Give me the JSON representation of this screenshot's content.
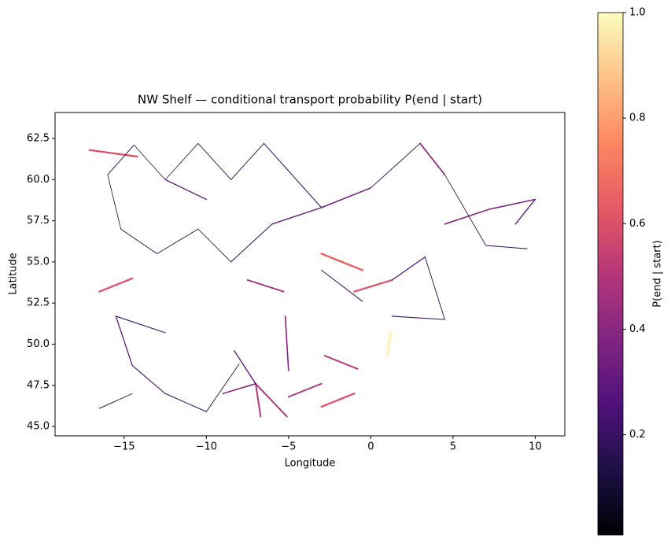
{
  "chart_data": {
    "type": "network",
    "title": "NW Shelf — conditional transport probability P(end | start)",
    "xlabel": "Longitude",
    "ylabel": "Latitude",
    "xlim": [
      -19.2,
      11.8
    ],
    "ylim": [
      44.43,
      64.08
    ],
    "xticks": [
      {
        "value": -15,
        "label": "−15"
      },
      {
        "value": -10,
        "label": "−10"
      },
      {
        "value": -5,
        "label": "−5"
      },
      0,
      5,
      10
    ],
    "yticks": [
      {
        "value": 45,
        "label": "45.0"
      },
      47.5,
      {
        "value": 50,
        "label": "50.0"
      },
      52.5,
      {
        "value": 55,
        "label": "55.0"
      },
      57.5,
      {
        "value": 60,
        "label": "60.0"
      },
      62.5
    ],
    "colorbar_label": "P(end | start)",
    "colormap": "magma",
    "clim": [
      0.01,
      1.0
    ],
    "cticks": [
      0.2,
      0.4,
      0.6,
      0.8,
      {
        "value": 1.0,
        "label": "1.0"
      }
    ],
    "edges": [
      {
        "x": [
          -17.1,
          -14.2
        ],
        "y": [
          61.8,
          61.4
        ],
        "value": 0.6
      },
      {
        "x": [
          -16.5,
          -14.5
        ],
        "y": [
          53.2,
          54.0
        ],
        "value": 0.6
      },
      {
        "x": [
          -3.0,
          -0.5
        ],
        "y": [
          55.5,
          54.5
        ],
        "value": 0.65
      },
      {
        "x": [
          -1.0,
          1.3
        ],
        "y": [
          53.2,
          53.9
        ],
        "value": 0.6
      },
      {
        "x": [
          1.2,
          1.0
        ],
        "y": [
          50.7,
          49.3
        ],
        "value": 0.98
      },
      {
        "x": [
          -3.0,
          -1.0
        ],
        "y": [
          46.2,
          47.0
        ],
        "value": 0.6
      },
      {
        "x": [
          -2.8,
          -0.8
        ],
        "y": [
          49.3,
          48.5
        ],
        "value": 0.5
      },
      {
        "x": [
          -7.5,
          -5.3
        ],
        "y": [
          53.9,
          53.2
        ],
        "value": 0.45
      },
      {
        "x": [
          -7.0,
          -5.1
        ],
        "y": [
          47.6,
          45.6
        ],
        "value": 0.45
      },
      {
        "x": [
          -7.0,
          -6.7
        ],
        "y": [
          47.6,
          45.6
        ],
        "value": 0.5
      },
      {
        "x": [
          -5.0,
          -3.0
        ],
        "y": [
          46.8,
          47.6
        ],
        "value": 0.45
      },
      {
        "x": [
          -9.0,
          -7.0
        ],
        "y": [
          47.0,
          47.6
        ],
        "value": 0.4
      },
      {
        "x": [
          3.0,
          4.5
        ],
        "y": [
          62.2,
          60.3
        ],
        "value": 0.42
      },
      {
        "x": [
          7.2,
          10.0
        ],
        "y": [
          58.2,
          58.8
        ],
        "value": 0.35
      },
      {
        "x": [
          8.8,
          10.0
        ],
        "y": [
          57.3,
          58.8
        ],
        "value": 0.3
      },
      {
        "x": [
          -3.0,
          0.0
        ],
        "y": [
          58.3,
          59.5
        ],
        "value": 0.35
      },
      {
        "x": [
          4.5,
          7.2
        ],
        "y": [
          57.3,
          58.2
        ],
        "value": 0.4
      },
      {
        "x": [
          -5.2,
          -5.0
        ],
        "y": [
          51.7,
          48.4
        ],
        "value": 0.38
      },
      {
        "x": [
          -8.3,
          -7.0
        ],
        "y": [
          49.6,
          47.6
        ],
        "value": 0.3
      },
      {
        "x": [
          -16.0,
          -14.4
        ],
        "y": [
          60.3,
          62.1
        ],
        "value": 0.15
      },
      {
        "x": [
          -16.0,
          -15.2
        ],
        "y": [
          60.3,
          57.0
        ],
        "value": 0.12
      },
      {
        "x": [
          -14.4,
          -12.5
        ],
        "y": [
          62.1,
          60.0
        ],
        "value": 0.1
      },
      {
        "x": [
          -12.5,
          -10.5
        ],
        "y": [
          60.0,
          62.2
        ],
        "value": 0.1
      },
      {
        "x": [
          -10.5,
          -8.5
        ],
        "y": [
          62.2,
          60.0
        ],
        "value": 0.12
      },
      {
        "x": [
          -8.5,
          -6.5
        ],
        "y": [
          60.0,
          62.2
        ],
        "value": 0.15
      },
      {
        "x": [
          -6.5,
          -3.0
        ],
        "y": [
          62.2,
          58.3
        ],
        "value": 0.2
      },
      {
        "x": [
          -12.5,
          -10.0
        ],
        "y": [
          60.0,
          58.8
        ],
        "value": 0.25
      },
      {
        "x": [
          -15.2,
          -13.0
        ],
        "y": [
          57.0,
          55.5
        ],
        "value": 0.15
      },
      {
        "x": [
          -13.0,
          -10.5
        ],
        "y": [
          55.5,
          57.0
        ],
        "value": 0.12
      },
      {
        "x": [
          -10.5,
          -8.5
        ],
        "y": [
          57.0,
          55.0
        ],
        "value": 0.1
      },
      {
        "x": [
          -8.5,
          -6.0
        ],
        "y": [
          55.0,
          57.3
        ],
        "value": 0.18
      },
      {
        "x": [
          -15.5,
          -12.5
        ],
        "y": [
          51.7,
          50.7
        ],
        "value": 0.2
      },
      {
        "x": [
          -15.5,
          -14.5
        ],
        "y": [
          51.7,
          48.7
        ],
        "value": 0.25
      },
      {
        "x": [
          -14.5,
          -12.5
        ],
        "y": [
          48.7,
          47.0
        ],
        "value": 0.22
      },
      {
        "x": [
          -16.5,
          -14.5
        ],
        "y": [
          46.1,
          47.0
        ],
        "value": 0.15
      },
      {
        "x": [
          -12.5,
          -10.0
        ],
        "y": [
          47.0,
          45.9
        ],
        "value": 0.2
      },
      {
        "x": [
          -10.0,
          -8.0
        ],
        "y": [
          45.9,
          48.8
        ],
        "value": 0.15
      },
      {
        "x": [
          -3.0,
          -0.5
        ],
        "y": [
          54.5,
          52.6
        ],
        "value": 0.2
      },
      {
        "x": [
          1.3,
          3.3
        ],
        "y": [
          53.9,
          55.3
        ],
        "value": 0.25
      },
      {
        "x": [
          3.3,
          4.5
        ],
        "y": [
          55.3,
          51.5
        ],
        "value": 0.15
      },
      {
        "x": [
          1.3,
          4.5
        ],
        "y": [
          51.7,
          51.5
        ],
        "value": 0.2
      },
      {
        "x": [
          4.5,
          7.0
        ],
        "y": [
          60.3,
          56.0
        ],
        "value": 0.12
      },
      {
        "x": [
          7.0,
          9.5
        ],
        "y": [
          56.0,
          55.8
        ],
        "value": 0.2
      },
      {
        "x": [
          0.0,
          3.0
        ],
        "y": [
          59.5,
          62.2
        ],
        "value": 0.15
      },
      {
        "x": [
          -6.0,
          -3.0
        ],
        "y": [
          57.3,
          58.3
        ],
        "value": 0.3
      }
    ]
  }
}
